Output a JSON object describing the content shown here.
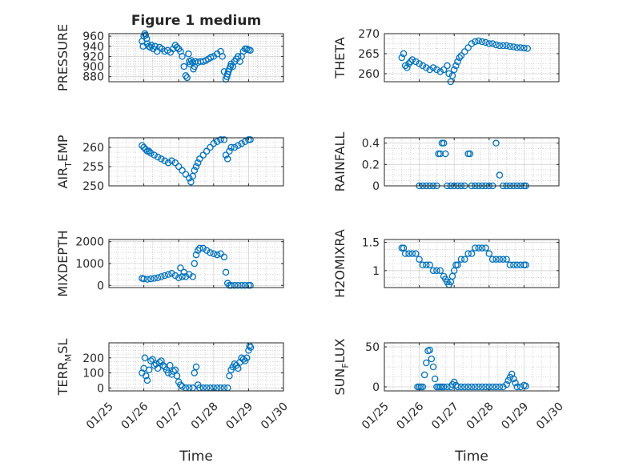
{
  "title": "Figure 1 medium",
  "colors": {
    "marker": "#0072BD",
    "axis": "#262626",
    "grid": "#b0b0b0"
  },
  "chart_data": [
    {
      "type": "scatter",
      "ylabel": "PRESSURE",
      "ylim": [
        870,
        965
      ],
      "yticks": [
        880,
        900,
        920,
        940,
        960
      ],
      "yticklabels": [
        "880",
        "900",
        "920",
        "940",
        "960"
      ],
      "xlim": [
        0,
        5
      ],
      "xticks": [
        0,
        1,
        2,
        3,
        4,
        5
      ],
      "xticklabels": [],
      "xlabel": "",
      "grid": true,
      "minor_grid": true,
      "x": [
        0.95,
        0.98,
        1.0,
        1.03,
        1.05,
        1.08,
        1.1,
        1.14,
        1.18,
        1.22,
        1.27,
        1.32,
        1.38,
        1.45,
        1.52,
        1.6,
        1.68,
        1.76,
        1.84,
        1.9,
        1.95,
        2.0,
        2.05,
        2.1,
        2.15,
        2.2,
        2.24,
        2.28,
        2.3,
        2.33,
        2.36,
        2.4,
        2.42,
        2.45,
        2.48,
        2.55,
        2.62,
        2.7,
        2.78,
        2.85,
        2.92,
        3.0,
        3.1,
        3.2,
        3.25,
        3.3,
        3.35,
        3.38,
        3.4,
        3.42,
        3.45,
        3.48,
        3.5,
        3.55,
        3.6,
        3.65,
        3.7,
        3.75,
        3.8,
        3.85,
        3.9,
        3.95,
        4.0,
        4.05
      ],
      "y": [
        950,
        940,
        960,
        965,
        962,
        955,
        945,
        940,
        938,
        942,
        935,
        940,
        930,
        938,
        935,
        930,
        932,
        928,
        935,
        942,
        938,
        935,
        930,
        920,
        900,
        882,
        878,
        925,
        910,
        905,
        912,
        908,
        895,
        900,
        910,
        908,
        910,
        910,
        912,
        915,
        918,
        920,
        925,
        930,
        920,
        890,
        875,
        880,
        885,
        890,
        895,
        900,
        905,
        900,
        910,
        915,
        920,
        910,
        920,
        930,
        935,
        935,
        933,
        932
      ]
    },
    {
      "type": "scatter",
      "ylabel": "THETA",
      "ylim": [
        258,
        270
      ],
      "yticks": [
        260,
        265,
        270
      ],
      "yticklabels": [
        "260",
        "265",
        "270"
      ],
      "xlim": [
        0,
        5
      ],
      "xticks": [
        0,
        1,
        2,
        3,
        4,
        5
      ],
      "xticklabels": [],
      "xlabel": "",
      "grid": true,
      "minor_grid": true,
      "x": [
        0.5,
        0.55,
        0.6,
        0.65,
        0.7,
        0.75,
        0.8,
        0.9,
        1.0,
        1.1,
        1.2,
        1.3,
        1.4,
        1.5,
        1.6,
        1.7,
        1.8,
        1.85,
        1.9,
        1.95,
        2.0,
        2.05,
        2.1,
        2.15,
        2.2,
        2.3,
        2.4,
        2.5,
        2.6,
        2.7,
        2.8,
        2.9,
        3.0,
        3.1,
        3.2,
        3.3,
        3.4,
        3.5,
        3.6,
        3.7,
        3.8,
        3.9,
        4.0,
        4.1
      ],
      "y": [
        264,
        265,
        262,
        261.5,
        262.5,
        263,
        263.5,
        263,
        262.5,
        262,
        261.5,
        261,
        261.5,
        261,
        260.5,
        261,
        262,
        260,
        258,
        259.5,
        261,
        262,
        263,
        264,
        264.5,
        265.5,
        266.5,
        267.5,
        268,
        268.2,
        268,
        267.8,
        267.5,
        267.5,
        267.2,
        267,
        267,
        267,
        266.8,
        266.7,
        266.5,
        266.5,
        266.4,
        266.3
      ]
    },
    {
      "type": "scatter",
      "ylabel": "AIR_TEMP",
      "ylim": [
        250,
        262.5
      ],
      "yticks": [
        250,
        255,
        260
      ],
      "yticklabels": [
        "250",
        "255",
        "260"
      ],
      "xlim": [
        0,
        5
      ],
      "xticks": [
        0,
        1,
        2,
        3,
        4,
        5
      ],
      "xticklabels": [],
      "xlabel": "",
      "grid": true,
      "minor_grid": true,
      "x": [
        0.95,
        1.0,
        1.05,
        1.1,
        1.15,
        1.2,
        1.3,
        1.4,
        1.5,
        1.6,
        1.7,
        1.8,
        1.9,
        2.0,
        2.1,
        2.2,
        2.3,
        2.35,
        2.4,
        2.45,
        2.5,
        2.55,
        2.6,
        2.7,
        2.8,
        2.9,
        3.0,
        3.1,
        3.2,
        3.3,
        3.35,
        3.4,
        3.45,
        3.5,
        3.6,
        3.7,
        3.8,
        3.9,
        4.0,
        4.05
      ],
      "y": [
        260.5,
        260,
        259.5,
        259,
        259,
        258.5,
        258,
        257.5,
        257,
        256.5,
        256,
        256.5,
        256,
        255,
        254,
        253,
        252,
        251,
        252.5,
        254,
        255,
        256,
        257,
        258,
        259,
        260,
        261,
        261.5,
        262,
        262,
        258,
        257,
        259,
        260,
        260,
        260.5,
        261,
        261.5,
        262,
        262
      ]
    },
    {
      "type": "scatter",
      "ylabel": "RAINFALL",
      "ylim": [
        0,
        0.45
      ],
      "yticks": [
        0,
        0.2,
        0.4
      ],
      "yticklabels": [
        "0",
        "0.2",
        "0.4"
      ],
      "xlim": [
        0,
        5
      ],
      "xticks": [
        0,
        1,
        2,
        3,
        4,
        5
      ],
      "xticklabels": [],
      "xlabel": "",
      "grid": true,
      "minor_grid": true,
      "x": [
        1.0,
        1.1,
        1.2,
        1.3,
        1.4,
        1.5,
        1.55,
        1.6,
        1.65,
        1.7,
        1.75,
        1.8,
        1.9,
        2.0,
        2.1,
        2.2,
        2.3,
        2.4,
        2.45,
        2.5,
        2.6,
        2.7,
        2.8,
        2.9,
        3.0,
        3.1,
        3.2,
        3.3,
        3.4,
        3.5,
        3.6,
        3.7,
        3.8,
        3.9,
        4.0,
        4.05
      ],
      "y": [
        0,
        0,
        0,
        0,
        0,
        0,
        0.3,
        0.3,
        0.4,
        0.4,
        0.3,
        0,
        0,
        0,
        0,
        0,
        0,
        0.3,
        0.3,
        0,
        0,
        0,
        0,
        0,
        0,
        0,
        0.4,
        0.1,
        0,
        0,
        0,
        0,
        0,
        0,
        0,
        0
      ]
    },
    {
      "type": "scatter",
      "ylabel": "MIXDEPTH",
      "ylim": [
        -100,
        2100
      ],
      "yticks": [
        0,
        1000,
        2000
      ],
      "yticklabels": [
        "0",
        "1000",
        "2000"
      ],
      "xlim": [
        0,
        5
      ],
      "xticks": [
        0,
        1,
        2,
        3,
        4,
        5
      ],
      "xticklabels": [],
      "xlabel": "",
      "grid": true,
      "minor_grid": true,
      "x": [
        0.95,
        1.0,
        1.1,
        1.2,
        1.3,
        1.4,
        1.5,
        1.6,
        1.7,
        1.8,
        1.9,
        2.0,
        2.05,
        2.1,
        2.15,
        2.2,
        2.3,
        2.4,
        2.45,
        2.5,
        2.55,
        2.6,
        2.7,
        2.8,
        2.9,
        3.0,
        3.1,
        3.2,
        3.3,
        3.35,
        3.4,
        3.45,
        3.5,
        3.6,
        3.7,
        3.8,
        3.9,
        4.0,
        4.05
      ],
      "y": [
        320,
        300,
        280,
        300,
        320,
        350,
        400,
        450,
        500,
        550,
        450,
        350,
        800,
        400,
        600,
        400,
        500,
        400,
        1000,
        1400,
        1600,
        1700,
        1700,
        1600,
        1500,
        1450,
        1400,
        1450,
        1300,
        600,
        100,
        0,
        0,
        0,
        0,
        0,
        0,
        0,
        0
      ]
    },
    {
      "type": "scatter",
      "ylabel": "H2OMIXRA",
      "ylim": [
        0.7,
        1.55
      ],
      "yticks": [
        1.0,
        1.5
      ],
      "yticklabels": [
        "1",
        "1.5"
      ],
      "xlim": [
        0,
        5
      ],
      "xticks": [
        0,
        1,
        2,
        3,
        4,
        5
      ],
      "xticklabels": [],
      "xlabel": "",
      "grid": true,
      "minor_grid": true,
      "x": [
        0.5,
        0.55,
        0.6,
        0.7,
        0.8,
        0.9,
        1.0,
        1.1,
        1.2,
        1.3,
        1.4,
        1.5,
        1.6,
        1.7,
        1.75,
        1.8,
        1.85,
        1.9,
        1.95,
        2.0,
        2.05,
        2.1,
        2.2,
        2.3,
        2.4,
        2.5,
        2.6,
        2.7,
        2.8,
        2.9,
        3.0,
        3.1,
        3.2,
        3.3,
        3.4,
        3.5,
        3.6,
        3.7,
        3.8,
        3.9,
        4.0,
        4.05
      ],
      "y": [
        1.4,
        1.4,
        1.3,
        1.3,
        1.3,
        1.3,
        1.2,
        1.1,
        1.1,
        1.1,
        1.0,
        1.0,
        1.0,
        0.9,
        0.85,
        0.8,
        0.75,
        0.8,
        0.9,
        1.0,
        1.1,
        1.1,
        1.2,
        1.2,
        1.3,
        1.3,
        1.4,
        1.4,
        1.4,
        1.4,
        1.3,
        1.2,
        1.2,
        1.2,
        1.2,
        1.2,
        1.1,
        1.1,
        1.1,
        1.1,
        1.1,
        1.1
      ]
    },
    {
      "type": "scatter",
      "ylabel": "TERR_MSL",
      "ylim": [
        -20,
        300
      ],
      "yticks": [
        0,
        100,
        200
      ],
      "yticklabels": [
        "0",
        "100",
        "200"
      ],
      "xlim": [
        0,
        5
      ],
      "xticks": [
        0,
        1,
        2,
        3,
        4,
        5
      ],
      "xticklabels": [
        "01/25",
        "01/26",
        "01/27",
        "01/28",
        "01/29",
        "01/30"
      ],
      "xlabel": "Time",
      "grid": true,
      "minor_grid": true,
      "x": [
        0.95,
        1.0,
        1.03,
        1.06,
        1.1,
        1.15,
        1.2,
        1.25,
        1.3,
        1.35,
        1.4,
        1.45,
        1.5,
        1.55,
        1.6,
        1.65,
        1.7,
        1.75,
        1.8,
        1.85,
        1.9,
        1.95,
        2.0,
        2.05,
        2.1,
        2.2,
        2.3,
        2.4,
        2.45,
        2.5,
        2.55,
        2.6,
        2.7,
        2.8,
        2.9,
        3.0,
        3.1,
        3.2,
        3.3,
        3.4,
        3.45,
        3.5,
        3.55,
        3.6,
        3.65,
        3.7,
        3.75,
        3.8,
        3.85,
        3.9,
        3.95,
        4.0,
        4.03,
        4.06
      ],
      "y": [
        100,
        130,
        200,
        80,
        50,
        120,
        180,
        190,
        150,
        160,
        130,
        170,
        180,
        150,
        140,
        120,
        100,
        150,
        90,
        110,
        120,
        80,
        40,
        20,
        10,
        0,
        0,
        0,
        100,
        140,
        20,
        0,
        0,
        0,
        0,
        0,
        0,
        0,
        0,
        0,
        80,
        120,
        140,
        160,
        150,
        130,
        170,
        200,
        190,
        180,
        200,
        250,
        280,
        270
      ]
    },
    {
      "type": "scatter",
      "ylabel": "SUN_FLUX",
      "ylim": [
        -5,
        55
      ],
      "yticks": [
        0,
        50
      ],
      "yticklabels": [
        "0",
        "50"
      ],
      "xlim": [
        0,
        5
      ],
      "xticks": [
        0,
        1,
        2,
        3,
        4,
        5
      ],
      "xticklabels": [
        "01/25",
        "01/26",
        "01/27",
        "01/28",
        "01/29",
        "01/30"
      ],
      "xlabel": "Time",
      "grid": true,
      "minor_grid": true,
      "x": [
        0.95,
        1.0,
        1.05,
        1.1,
        1.15,
        1.2,
        1.25,
        1.3,
        1.35,
        1.4,
        1.45,
        1.5,
        1.55,
        1.6,
        1.65,
        1.7,
        1.8,
        1.9,
        1.95,
        2.0,
        2.05,
        2.1,
        2.2,
        2.3,
        2.4,
        2.5,
        2.6,
        2.7,
        2.8,
        2.9,
        3.0,
        3.1,
        3.2,
        3.3,
        3.4,
        3.5,
        3.55,
        3.6,
        3.65,
        3.7,
        3.75,
        3.8,
        3.9,
        4.0,
        4.05
      ],
      "y": [
        0,
        0,
        0,
        0,
        15,
        30,
        45,
        46,
        35,
        25,
        10,
        0,
        0,
        0,
        0,
        0,
        0,
        0,
        3,
        6,
        2,
        0,
        0,
        0,
        0,
        0,
        0,
        0,
        0,
        0,
        0,
        0,
        0,
        0,
        0,
        3,
        8,
        12,
        16,
        10,
        5,
        0,
        0,
        2,
        1
      ]
    }
  ]
}
